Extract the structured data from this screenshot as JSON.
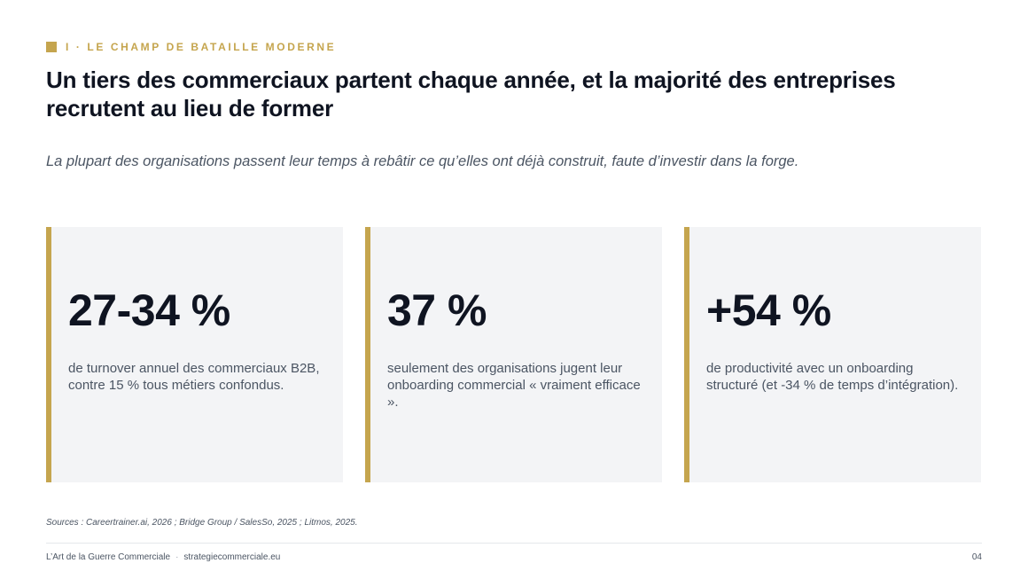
{
  "section": {
    "label": "I · LE CHAMP DE BATAILLE MODERNE"
  },
  "title": "Un tiers des commerciaux partent chaque année, et la majorité des entreprises recrutent au lieu de former",
  "subtitle": "La plupart des organisations passent leur temps à rebâtir ce qu’elles ont déjà construit, faute d’investir dans la forge.",
  "cards": [
    {
      "value": "27-34 %",
      "description": "de turnover annuel des commerciaux B2B, contre 15 % tous métiers confondus."
    },
    {
      "value": "37 %",
      "description": "seulement des organisations jugent leur onboarding commercial « vraiment efficace »."
    },
    {
      "value": "+54 %",
      "description": "de productivité avec un onboarding structuré (et -34 % de temps d’intégration)."
    }
  ],
  "sources": "Sources : Careertrainer.ai, 2026 ; Bridge Group / SalesSo, 2025 ; Litmos, 2025.",
  "footer": {
    "brand": "L’Art de la Guerre Commerciale",
    "separator": "·",
    "site": "strategiecommerciale.eu",
    "page_number": "04"
  },
  "colors": {
    "accent": "#c5a54e",
    "card_background": "#f3f4f6",
    "heading": "#0f1421",
    "body_text": "#4b5563"
  }
}
